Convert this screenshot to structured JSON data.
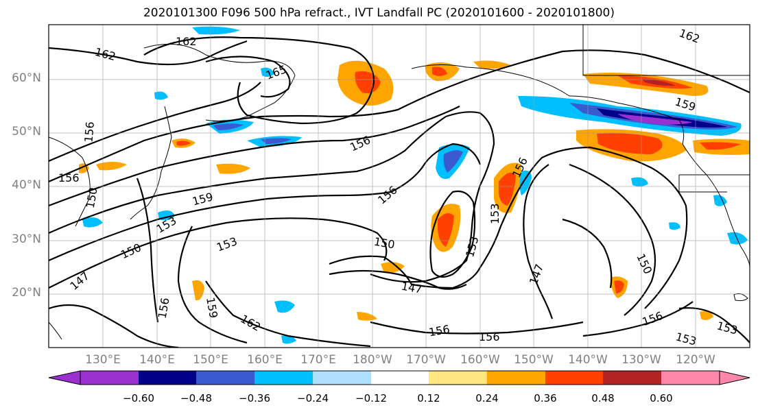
{
  "title": "2020101300 F096 500 hPa refract., IVT Landfall PC (2020101600 - 2020101800)",
  "latitude_labels": [
    "60°N",
    "50°N",
    "40°N",
    "30°N",
    "20°N"
  ],
  "longitude_labels": [
    "130°E",
    "140°E",
    "150°E",
    "160°E",
    "170°E",
    "180°W",
    "170°W",
    "160°W",
    "150°W",
    "140°W",
    "130°W",
    "120°W"
  ],
  "contour_labels": [
    "162",
    "162",
    "165",
    "162",
    "159",
    "156",
    "156",
    "156",
    "159",
    "153",
    "150",
    "153",
    "147",
    "150",
    "156",
    "153",
    "156",
    "153",
    "147",
    "150",
    "156",
    "156",
    "153",
    "162",
    "159",
    "156",
    "156",
    "153",
    "150",
    "147"
  ],
  "colorbar": {
    "tick_labels": [
      "−0.60",
      "−0.48",
      "−0.36",
      "−0.24",
      "−0.12",
      "0.12",
      "0.24",
      "0.36",
      "0.48",
      "0.60"
    ],
    "colors": [
      "#9b30d0",
      "#00008b",
      "#3a5bd0",
      "#00bfff",
      "#b0e0ff",
      "#ffffff",
      "#ffe680",
      "#ffa500",
      "#ff4000",
      "#b22222",
      "#ff88aa"
    ]
  }
}
